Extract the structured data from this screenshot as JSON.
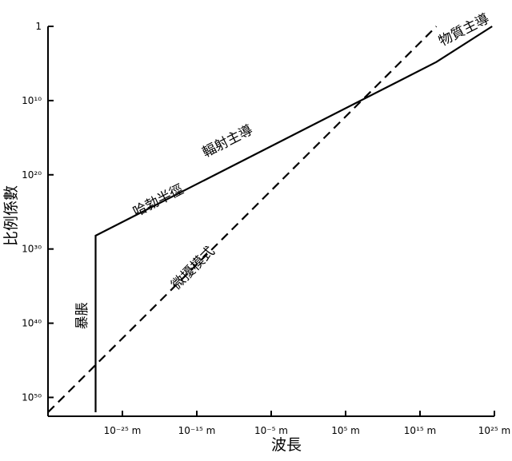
{
  "chart_data": {
    "type": "line",
    "xlabel": "波長",
    "ylabel": "比例係數",
    "xscale": "log",
    "yscale": "log",
    "xlim": [
      1e-35,
      1e+25
    ],
    "ylim": [
      1e+52,
      1
    ],
    "xticks": [
      {
        "value": 1e-25,
        "label": "10⁻²⁵ m"
      },
      {
        "value": 1e-15,
        "label": "10⁻¹⁵ m"
      },
      {
        "value": 1e-05,
        "label": "10⁻⁵ m"
      },
      {
        "value": 100000.0,
        "label": "10⁵ m"
      },
      {
        "value": 1000000000000000.0,
        "label": "10¹⁵ m"
      },
      {
        "value": 1e+25,
        "label": "10²⁵ m"
      }
    ],
    "yticks": [
      1,
      {
        "value": 10000000000.0,
        "label": "10¹⁰"
      },
      {
        "value": 1e+20,
        "label": "10²⁰"
      },
      {
        "value": 1e+30,
        "label": "10³⁰"
      },
      {
        "value": 1e+40,
        "label": "10⁴⁰"
      },
      {
        "value": 1e+50,
        "label": "10⁵⁰"
      }
    ],
    "series": [
      {
        "color": "#000",
        "dash": false,
        "x": [
          2.5e-29,
          2.5e-29,
          1.6e+17,
          5e+24
        ],
        "values": [
          1e+52,
          1.6e+28,
          63000.0,
          1
        ]
      },
      {
        "color": "#000",
        "dash": true,
        "x": [
          1e-35,
          1.6e+17
        ],
        "values": [
          1e+52,
          1
        ]
      }
    ],
    "annotations": [
      {
        "text": "暴脹",
        "x": 1.5e-30,
        "y": 1e+39,
        "angle": -90
      },
      {
        "text": "哈勃半徑",
        "x": 1.2e-20,
        "y": 1e+24,
        "angle": -27
      },
      {
        "text": "輻射主導",
        "x": 2.5e-11,
        "y": 1e+16,
        "angle": -27
      },
      {
        "text": "微擾模式",
        "x": 8e-16,
        "y": 1e+33,
        "angle": -45
      },
      {
        "text": "物質主導",
        "x": 1.5e+21,
        "y": 10.0,
        "angle": -27
      }
    ]
  }
}
